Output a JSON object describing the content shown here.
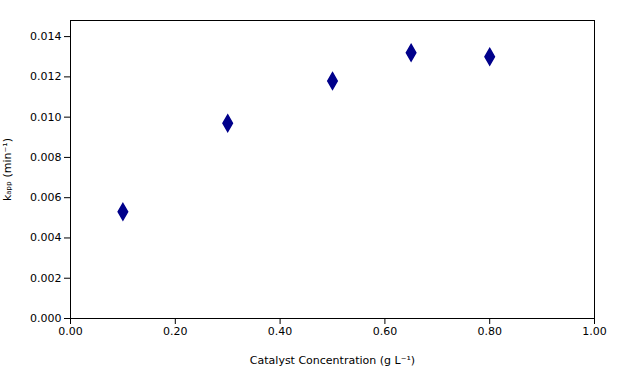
{
  "chart_data": {
    "type": "scatter",
    "xlabel": "Catalyst Concentration (g L⁻¹)",
    "ylabel": "kₐₚₚ (min⁻¹)",
    "x": [
      0.1,
      0.3,
      0.5,
      0.65,
      0.8
    ],
    "values": [
      0.0053,
      0.0097,
      0.0118,
      0.0132,
      0.013
    ],
    "color": "#00008B",
    "marker": "diamond",
    "xlim": [
      0.0,
      1.0
    ],
    "ylim": [
      0.0,
      0.0148
    ],
    "xticks": [
      {
        "value": 0,
        "label": "0.00"
      },
      {
        "value": 0.2,
        "label": "0.20"
      },
      {
        "value": 0.4,
        "label": "0.40"
      },
      {
        "value": 0.6,
        "label": "0.60"
      },
      {
        "value": 0.8,
        "label": "0.80"
      },
      {
        "value": 1,
        "label": "1.00"
      }
    ],
    "yticks": [
      {
        "value": 0,
        "label": "0.000"
      },
      {
        "value": 0.002,
        "label": "0.002"
      },
      {
        "value": 0.004,
        "label": "0.004"
      },
      {
        "value": 0.006,
        "label": "0.006"
      },
      {
        "value": 0.008,
        "label": "0.008"
      },
      {
        "value": 0.01,
        "label": "0.010"
      },
      {
        "value": 0.012,
        "label": "0.012"
      },
      {
        "value": 0.014,
        "label": "0.014"
      }
    ],
    "grid": false
  }
}
